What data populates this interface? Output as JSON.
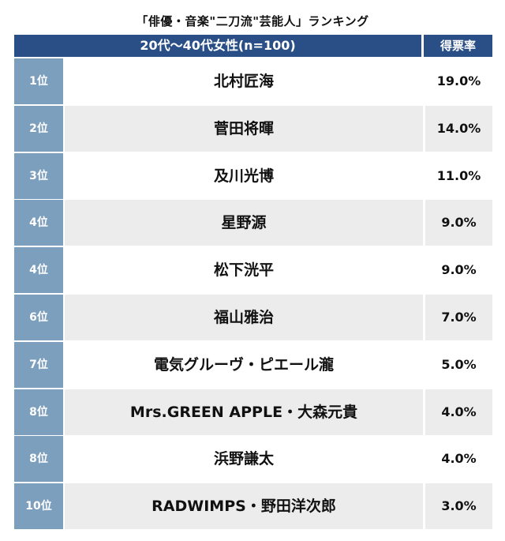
{
  "chart_data": {
    "type": "table",
    "title": "「俳優・音楽\"二刀流\"芸能人」ランキング",
    "column_headers": [
      "20代〜40代女性(n=100)",
      "得票率"
    ],
    "rows": [
      {
        "rank": "1位",
        "name": "北村匠海",
        "value": "19.0%"
      },
      {
        "rank": "2位",
        "name": "菅田将暉",
        "value": "14.0%"
      },
      {
        "rank": "3位",
        "name": "及川光博",
        "value": "11.0%"
      },
      {
        "rank": "4位",
        "name": "星野源",
        "value": "9.0%"
      },
      {
        "rank": "4位",
        "name": "松下洸平",
        "value": "9.0%"
      },
      {
        "rank": "6位",
        "name": "福山雅治",
        "value": "7.0%"
      },
      {
        "rank": "7位",
        "name": "電気グルーヴ・ピエール瀧",
        "value": "5.0%"
      },
      {
        "rank": "8位",
        "name": "Mrs.GREEN APPLE・大森元貴",
        "value": "4.0%"
      },
      {
        "rank": "8位",
        "name": "浜野謙太",
        "value": "4.0%"
      },
      {
        "rank": "10位",
        "name": "RADWIMPS・野田洋次郎",
        "value": "3.0%"
      }
    ],
    "colors": {
      "header_bg": "#2a4f87",
      "rank_bg": "#7d9fbe",
      "row_alt_bg": "#ececec"
    }
  }
}
